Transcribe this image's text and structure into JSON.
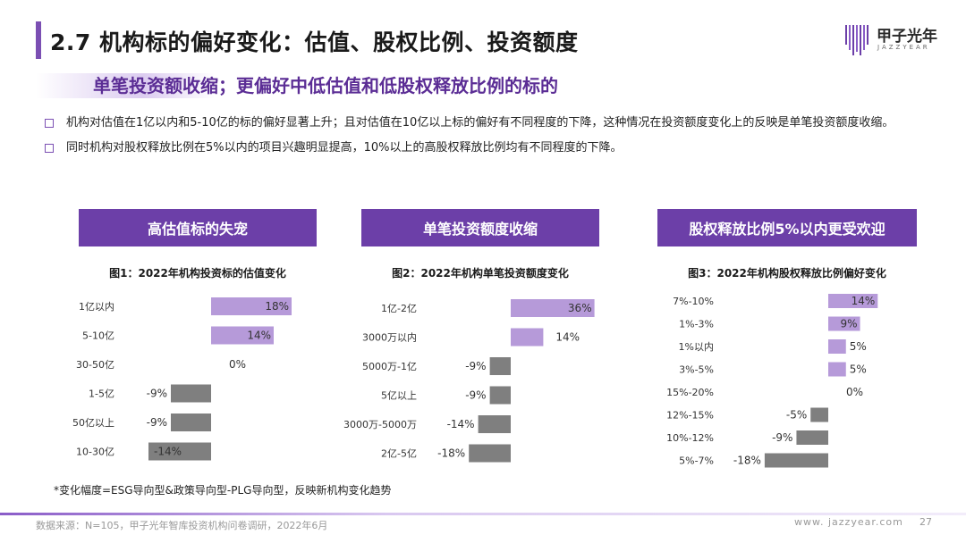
{
  "header": {
    "title": "2.7 机构标的偏好变化：估值、股权比例、投资额度",
    "logo_cn": "甲子光年",
    "logo_en": "JAZZYEAR"
  },
  "subtitle": "单笔投资额收缩；更偏好中低估值和低股权释放比例的标的",
  "bullets": [
    "机构对估值在1亿以内和5-10亿的标的偏好显著上升；且对估值在10亿以上标的偏好有不同程度的下降，这种情况在投资额度变化上的反映是单笔投资额度收缩。",
    "同时机构对股权释放比例在5%以内的项目兴趣明显提高，10%以上的高股权释放比例均有不同程度的下降。"
  ],
  "panels": [
    {
      "header": "高估值标的失宠"
    },
    {
      "header": "单笔投资额度收缩"
    },
    {
      "header": "股权释放比例5%以内更受欢迎"
    }
  ],
  "colors": {
    "positive": "#b69ad9",
    "negative": "#7f7f7f",
    "accent": "#6c3fa8"
  },
  "chart_data": [
    {
      "type": "bar",
      "orientation": "horizontal",
      "title": "图1：2022年机构投资标的估值变化",
      "categories": [
        "1亿以内",
        "5-10亿",
        "30-50亿",
        "1-5亿",
        "50亿以上",
        "10-30亿"
      ],
      "values": [
        18,
        14,
        0,
        -9,
        -9,
        -14
      ],
      "labels": [
        "18%",
        "14%",
        "0%",
        "-9%",
        "-9%",
        "-14%"
      ],
      "unit": "%"
    },
    {
      "type": "bar",
      "orientation": "horizontal",
      "title": "图2：2022年机构单笔投资额度变化",
      "categories": [
        "1亿-2亿",
        "3000万以内",
        "5000万-1亿",
        "5亿以上",
        "3000万-5000万",
        "2亿-5亿"
      ],
      "values": [
        36,
        14,
        -9,
        -9,
        -14,
        -18
      ],
      "labels": [
        "36%",
        "14%",
        "-9%",
        "-9%",
        "-14%",
        "-18%"
      ],
      "unit": "%"
    },
    {
      "type": "bar",
      "orientation": "horizontal",
      "title": "图3：2022年机构股权释放比例偏好变化",
      "categories": [
        "7%-10%",
        "1%-3%",
        "1%以内",
        "3%-5%",
        "15%-20%",
        "12%-15%",
        "10%-12%",
        "5%-7%"
      ],
      "values": [
        14,
        9,
        5,
        5,
        0,
        -5,
        -9,
        -18
      ],
      "labels": [
        "14%",
        "9%",
        "5%",
        "5%",
        "0%",
        "-5%",
        "-9%",
        "-18%"
      ],
      "unit": "%"
    }
  ],
  "note": "*变化幅度=ESG导向型&政策导向型-PLG导向型，反映新机构变化趋势",
  "footer": {
    "source": "数据来源：N=105，甲子光年智库投资机构问卷调研，2022年6月",
    "website": "www. jazzyear.com",
    "page": "27"
  }
}
